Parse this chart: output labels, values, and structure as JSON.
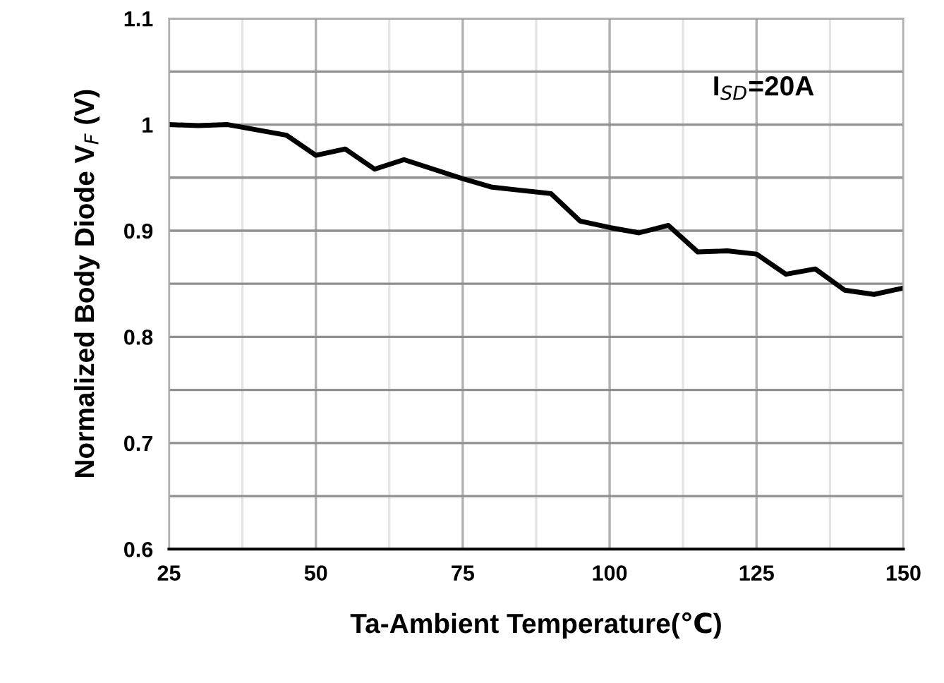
{
  "chart_data": {
    "type": "line",
    "xlabel": "Ta-Ambient Temperature(℃)",
    "ylabel": "Normalized Body Diode V$_{F}$ (V)",
    "annotations": [
      "I$_{SD}$=20A"
    ],
    "x": [
      25,
      30,
      35,
      40,
      45,
      50,
      55,
      60,
      65,
      70,
      75,
      80,
      85,
      90,
      95,
      100,
      105,
      110,
      115,
      120,
      125,
      130,
      135,
      140,
      145,
      150
    ],
    "series": [
      {
        "color": "#000000",
        "values": [
          1.0,
          0.999,
          1.0,
          0.995,
          0.99,
          0.971,
          0.977,
          0.958,
          0.967,
          0.958,
          0.949,
          0.941,
          0.938,
          0.935,
          0.909,
          0.903,
          0.898,
          0.905,
          0.88,
          0.881,
          0.878,
          0.859,
          0.864,
          0.844,
          0.84,
          0.846
        ]
      }
    ],
    "xlim": [
      25,
      150
    ],
    "xticks": [
      25,
      {
        "value": 37.5,
        "label": null
      },
      50,
      {
        "value": 62.5,
        "label": null
      },
      75,
      {
        "value": 87.5,
        "label": null
      },
      100,
      {
        "value": 112.5,
        "label": null
      },
      125,
      {
        "value": 137.5,
        "label": null
      },
      150
    ],
    "ylim": [
      0.6,
      1.1
    ],
    "yticks": [
      0.6,
      {
        "value": 0.65,
        "label": null
      },
      0.7,
      {
        "value": 0.75,
        "label": null
      },
      0.8,
      {
        "value": 0.85,
        "label": null
      },
      0.9,
      {
        "value": 0.95,
        "label": null
      },
      1,
      {
        "value": 1.05,
        "label": null
      },
      1.1
    ],
    "grid": true,
    "marker": "none",
    "line_style": "solid",
    "legend": false
  }
}
